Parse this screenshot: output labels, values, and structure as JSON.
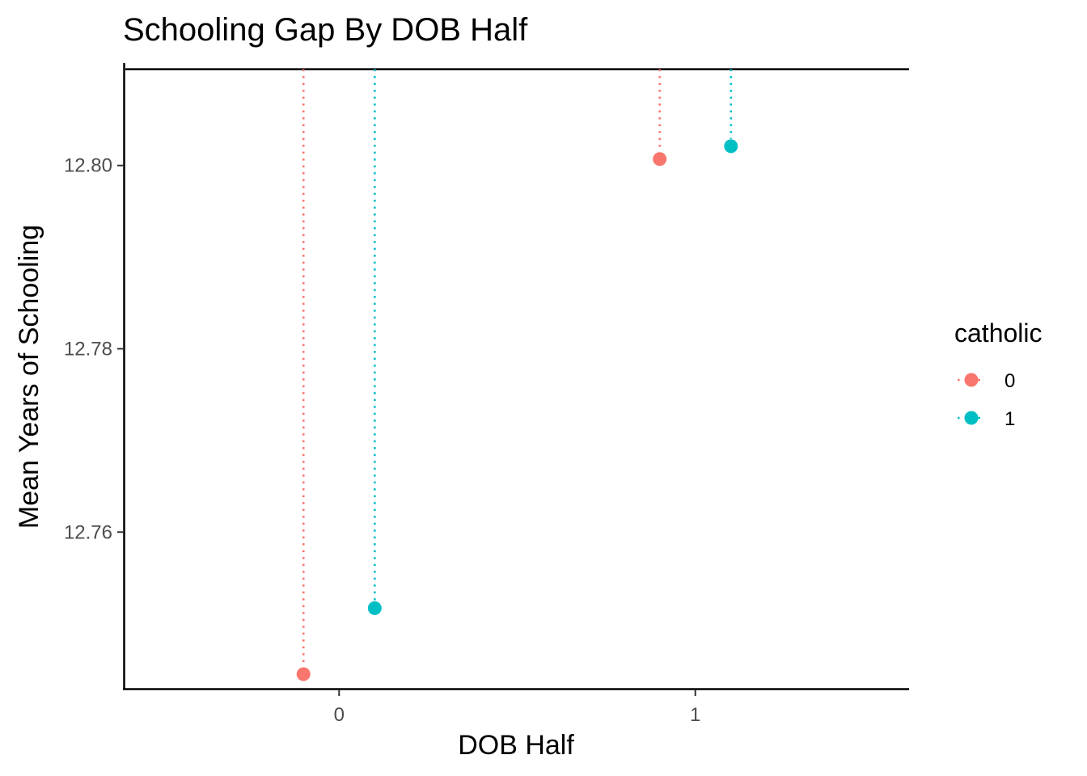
{
  "chart_data": {
    "type": "scatter",
    "title": "Schooling Gap By DOB Half",
    "xlabel": "DOB Half",
    "ylabel": "Mean Years of Schooling",
    "x_ticks": [
      "0",
      "1"
    ],
    "y_ticks": [
      "12.76",
      "12.78",
      "12.80"
    ],
    "xlim": [
      -0.6,
      1.6
    ],
    "ylim": [
      12.743,
      12.811
    ],
    "reference_line_y": 12.8105,
    "grid": false,
    "legend": {
      "title": "catholic",
      "position": "right",
      "entries": [
        {
          "label": "0",
          "color": "#F8766D"
        },
        {
          "label": "1",
          "color": "#00BFC4"
        }
      ]
    },
    "series": [
      {
        "name": "0",
        "color": "#F8766D",
        "points": [
          {
            "x": -0.1,
            "y": 12.7445
          },
          {
            "x": 0.9,
            "y": 12.8007
          }
        ]
      },
      {
        "name": "1",
        "color": "#00BFC4",
        "points": [
          {
            "x": 0.1,
            "y": 12.7517
          },
          {
            "x": 1.1,
            "y": 12.8021
          }
        ]
      }
    ]
  }
}
